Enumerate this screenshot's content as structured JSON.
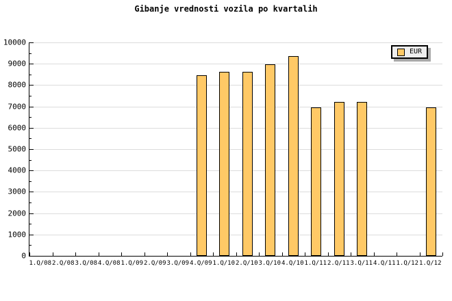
{
  "legend": {
    "label": "EUR"
  },
  "colors": {
    "background": "#FFFFFF",
    "bar_fill": "#FFC966",
    "bar_border": "#000000",
    "gridline": "#DCDCDC",
    "axis": "#000000",
    "legend_bg": "#EEEEEE",
    "legend_shadow": "#AAAAAA"
  },
  "chart_data": {
    "type": "bar",
    "title": "Gibanje vrednosti vozila po kvartalih",
    "categories": [
      "1.Q/08",
      "2.Q/08",
      "3.Q/08",
      "4.Q/08",
      "1.Q/09",
      "2.Q/09",
      "3.Q/09",
      "4.Q/09",
      "1.Q/10",
      "2.Q/10",
      "3.Q/10",
      "4.Q/10",
      "1.Q/11",
      "2.Q/11",
      "3.Q/11",
      "4.Q/11",
      "1.Q/12",
      "1.Q/12"
    ],
    "series": [
      {
        "name": "EUR",
        "values": [
          null,
          null,
          null,
          null,
          null,
          null,
          null,
          8400,
          8550,
          8550,
          8900,
          9300,
          6900,
          7150,
          7150,
          null,
          null,
          6900
        ]
      }
    ],
    "xlabel": "",
    "ylabel": "",
    "ylim": [
      0,
      10000
    ],
    "yticks": [
      0,
      1000,
      2000,
      3000,
      4000,
      5000,
      6000,
      7000,
      8000,
      9000,
      10000
    ],
    "y_minor_step": 500,
    "grid": true,
    "legend_position": "top-right"
  }
}
